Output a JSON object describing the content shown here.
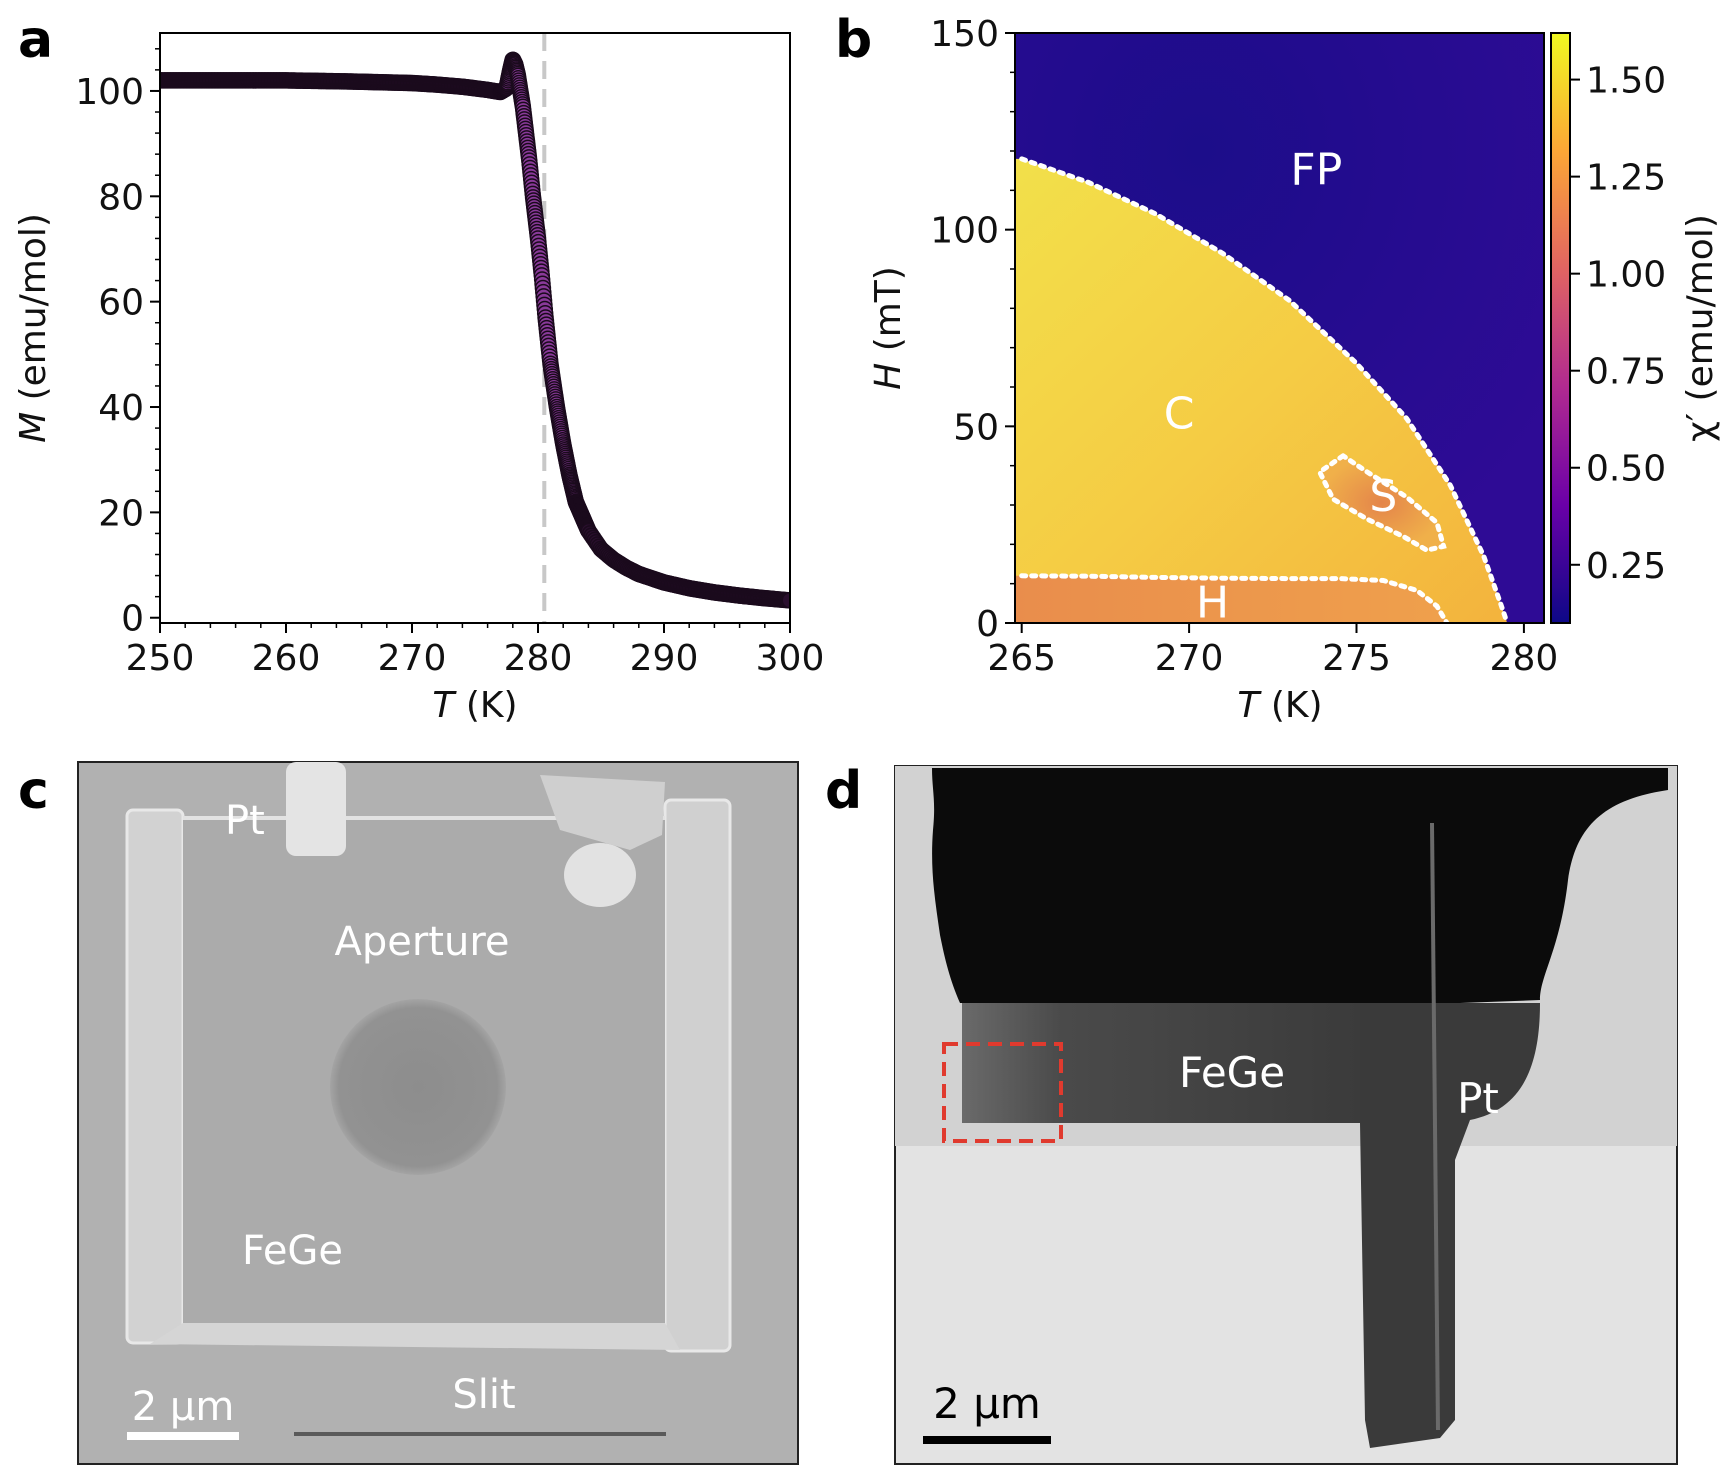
{
  "panels": {
    "a": {
      "letter": "a"
    },
    "b": {
      "letter": "b"
    },
    "c": {
      "letter": "c"
    },
    "d": {
      "letter": "d"
    }
  },
  "chart_data": [
    {
      "panel": "a",
      "type": "scatter",
      "xlabel_italic": "T",
      "xlabel_unit": " (K)",
      "ylabel_italic": "M",
      "ylabel_unit": " (emu/mol)",
      "xlim": [
        250,
        300
      ],
      "ylim": [
        -1,
        111
      ],
      "xticks": [
        250,
        260,
        270,
        280,
        290,
        300
      ],
      "yticks": [
        0,
        20,
        40,
        60,
        80,
        100
      ],
      "reference_line_x": 280.5,
      "marker_color": "#8a3a9a",
      "series": [
        {
          "name": "M(T)",
          "x": [
            250,
            255,
            260,
            265,
            270,
            272,
            274,
            276,
            277,
            277.5,
            277.8,
            278.0,
            278.2,
            278.4,
            278.6,
            278.8,
            279.0,
            279.3,
            279.6,
            280.0,
            280.3,
            280.6,
            281.0,
            281.5,
            282.0,
            282.5,
            283.0,
            284.0,
            285.0,
            286.0,
            287.0,
            288.0,
            290.0,
            292.0,
            294.0,
            296.0,
            298.0,
            300.0
          ],
          "y": [
            102,
            102,
            102,
            101.8,
            101.5,
            101.2,
            100.8,
            100.2,
            99.8,
            100.5,
            104,
            106,
            105,
            103,
            100,
            97,
            93,
            87,
            80,
            72,
            65,
            57,
            48,
            40,
            33,
            27,
            22,
            16.5,
            13,
            11,
            9.5,
            8.3,
            6.7,
            5.6,
            4.8,
            4.2,
            3.7,
            3.3
          ]
        }
      ]
    },
    {
      "panel": "b",
      "type": "heatmap",
      "xlabel_italic": "T",
      "xlabel_unit": " (K)",
      "ylabel_italic": "H",
      "ylabel_unit": " (mT)",
      "colorbar_label": "χ′ (emu/mol)",
      "xlim": [
        264.8,
        280.6
      ],
      "ylim": [
        0,
        150
      ],
      "xticks": [
        265,
        270,
        275,
        280
      ],
      "yticks": [
        0,
        50,
        100,
        150
      ],
      "colorbar_range": [
        0.1,
        1.62
      ],
      "colorbar_ticks": [
        "0.25",
        "0.50",
        "0.75",
        "1.00",
        "1.25",
        "1.50"
      ],
      "colorbar_tick_values": [
        0.25,
        0.5,
        0.75,
        1.0,
        1.25,
        1.5
      ],
      "colormap": "plasma",
      "colormap_stops": [
        "#0d0887",
        "#6a00a8",
        "#b12a90",
        "#e16462",
        "#fca636",
        "#f0f921"
      ],
      "region_labels": [
        {
          "text": "FP",
          "T": 273.8,
          "H": 115
        },
        {
          "text": "C",
          "T": 269.7,
          "H": 53
        },
        {
          "text": "S",
          "T": 275.8,
          "H": 32
        },
        {
          "text": "H",
          "T": 270.7,
          "H": 5
        }
      ],
      "phase_boundaries": [
        {
          "name": "C-FP",
          "T": [
            265,
            267,
            269,
            271,
            273,
            275,
            276.5,
            277.8,
            278.8,
            279.3,
            279.5
          ],
          "H": [
            118,
            112,
            104,
            94,
            82,
            66,
            52,
            35,
            17,
            5,
            0
          ]
        },
        {
          "name": "H-C",
          "T": [
            265,
            267,
            269,
            271,
            273,
            274.5,
            275.8,
            276.8,
            277.4,
            277.7
          ],
          "H": [
            12,
            11.9,
            11.6,
            11.4,
            11.3,
            11.3,
            10.8,
            8.3,
            4.3,
            0
          ]
        },
        {
          "name": "S pocket",
          "T": [
            274.6,
            273.9,
            274.3,
            275.3,
            276.4,
            277.1,
            277.6,
            277.4,
            276.5,
            275.3,
            274.6
          ],
          "H": [
            42.5,
            38.4,
            31.5,
            26.5,
            22,
            18.5,
            19.5,
            25.5,
            32,
            38.5,
            42.5
          ]
        }
      ]
    }
  ],
  "images": {
    "c": {
      "labels": {
        "pt": "Pt",
        "aperture": "Aperture",
        "fege": "FeGe",
        "slit": "Slit"
      },
      "scalebar": "2 μm"
    },
    "d": {
      "labels": {
        "fege": "FeGe",
        "pt": "Pt"
      },
      "scalebar": "2 μm",
      "box_color": "#e03a2e"
    }
  }
}
